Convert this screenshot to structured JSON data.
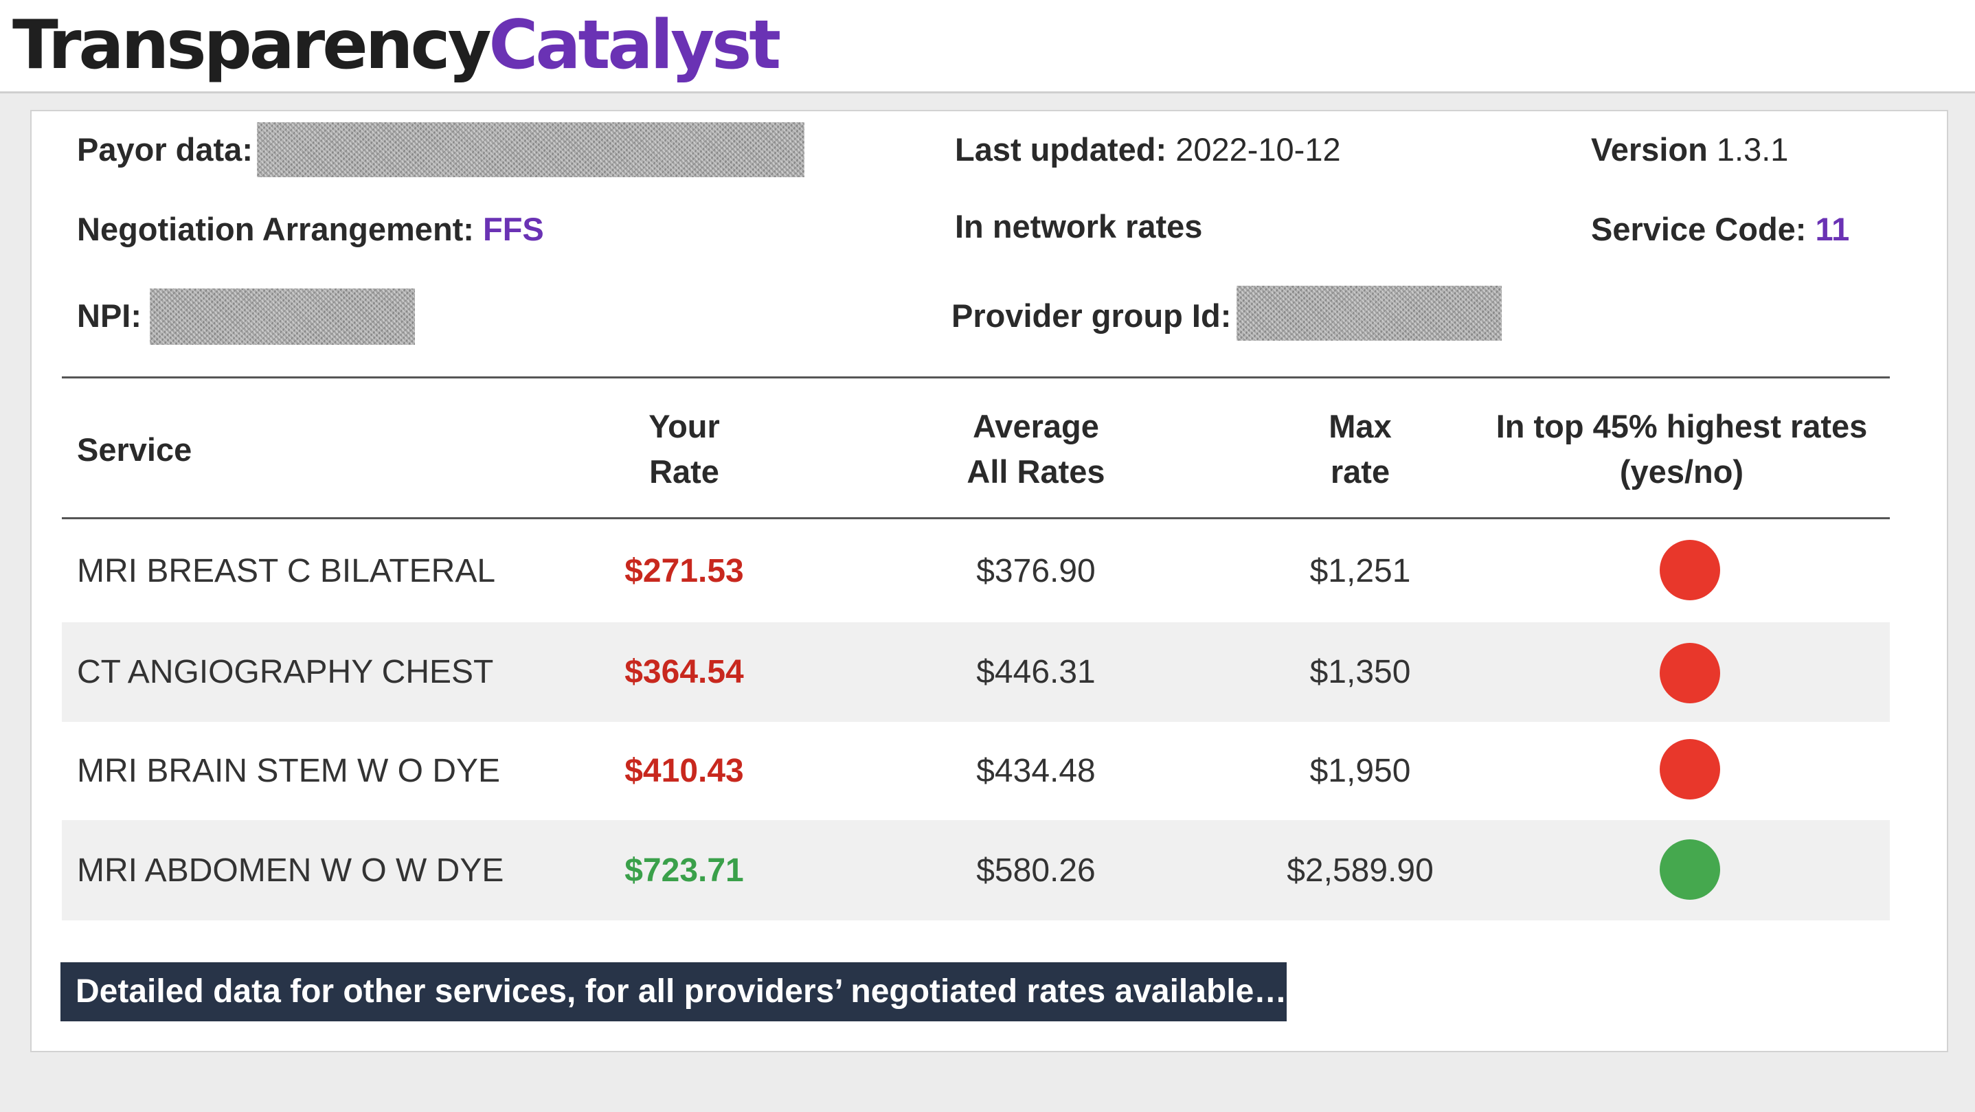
{
  "brand": {
    "part1": "Transparency",
    "part2": "Catalyst"
  },
  "meta": {
    "payor_label": "Payor data:",
    "last_updated_label": "Last updated:",
    "last_updated_value": "2022-10-12",
    "version_label": "Version",
    "version_value": "1.3.1",
    "negotiation_label": "Negotiation Arrangement:",
    "negotiation_value": "FFS",
    "network_text": "In network rates",
    "service_code_label": "Service Code:",
    "service_code_value": "11",
    "npi_label": "NPI:",
    "provider_group_label": "Provider group Id:"
  },
  "table": {
    "headers": {
      "service": "Service",
      "your_rate_1": "Your",
      "your_rate_2": "Rate",
      "avg_1": "Average",
      "avg_2": "All Rates",
      "max_1": "Max",
      "max_2": "rate",
      "top_1": "In top 45% highest rates",
      "top_2": "(yes/no)"
    },
    "rows": [
      {
        "service": "MRI BREAST C BILATERAL",
        "your_rate": "$271.53",
        "average": "$376.90",
        "max": "$1,251",
        "in_top": "no"
      },
      {
        "service": "CT ANGIOGRAPHY CHEST",
        "your_rate": "$364.54",
        "average": "$446.31",
        "max": "$1,350",
        "in_top": "no"
      },
      {
        "service": "MRI BRAIN STEM W O DYE",
        "your_rate": "$410.43",
        "average": "$434.48",
        "max": "$1,950",
        "in_top": "no"
      },
      {
        "service": "MRI ABDOMEN W O W DYE",
        "your_rate": "$723.71",
        "average": "$580.26",
        "max": "$2,589.90",
        "in_top": "yes"
      }
    ]
  },
  "colors": {
    "brand_purple": "#6a32b4",
    "rate_low": "#c8281e",
    "rate_high": "#3aa04a",
    "dot_no": "#e8372b",
    "dot_yes": "#45a84e",
    "footer_bg": "#283448"
  },
  "footer": {
    "link_text": "Detailed data for other services, for all providers’ negotiated rates available…"
  }
}
